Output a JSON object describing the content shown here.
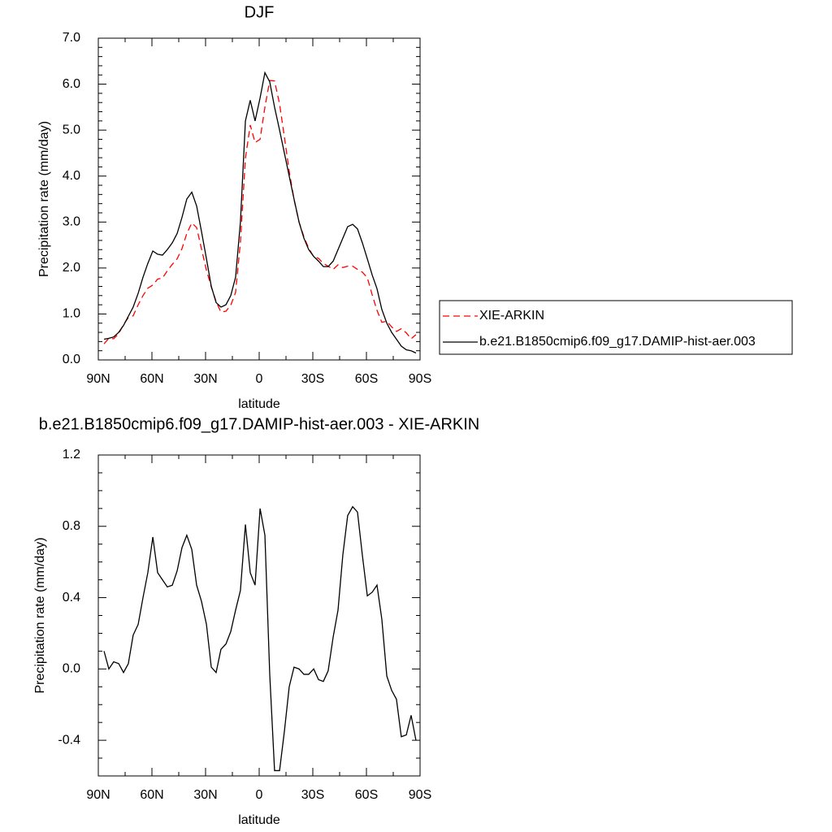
{
  "chart_data": [
    {
      "type": "line",
      "title": "DJF",
      "xlabel": "latitude",
      "ylabel": "Precipitation rate (mm/day)",
      "x": [
        86.8,
        84.1,
        81.4,
        78.6,
        75.9,
        73.2,
        70.5,
        67.7,
        65.0,
        62.3,
        59.5,
        56.8,
        54.1,
        51.4,
        48.6,
        45.9,
        43.2,
        40.5,
        37.7,
        35.0,
        32.3,
        29.5,
        26.8,
        24.1,
        21.4,
        18.6,
        15.9,
        13.2,
        10.5,
        7.7,
        5.0,
        2.3,
        -0.5,
        -3.2,
        -5.9,
        -8.6,
        -11.4,
        -14.1,
        -16.8,
        -19.5,
        -22.3,
        -25.0,
        -27.7,
        -30.5,
        -33.2,
        -35.9,
        -38.6,
        -41.4,
        -44.1,
        -46.8,
        -49.5,
        -52.3,
        -55.0,
        -57.7,
        -60.5,
        -63.2,
        -65.9,
        -68.6,
        -71.4,
        -74.1,
        -76.8,
        -79.5,
        -82.3,
        -85.0,
        -87.7
      ],
      "series": [
        {
          "name": "XIE-ARKIN",
          "color": "#ff0000",
          "dash": "8,5",
          "values": [
            0.35,
            0.47,
            0.46,
            0.57,
            0.77,
            0.92,
            0.96,
            1.2,
            1.4,
            1.56,
            1.63,
            1.76,
            1.78,
            1.94,
            2.08,
            2.2,
            2.42,
            2.75,
            2.98,
            2.88,
            2.42,
            1.95,
            1.59,
            1.27,
            1.04,
            1.06,
            1.19,
            1.47,
            2.56,
            4.39,
            5.11,
            4.73,
            4.8,
            5.5,
            6.08,
            6.07,
            5.57,
            4.85,
            4.1,
            3.49,
            3.0,
            2.68,
            2.43,
            2.25,
            2.21,
            2.1,
            2.04,
            1.97,
            2.07,
            2.01,
            2.04,
            2.04,
            1.97,
            1.91,
            1.79,
            1.42,
            1.08,
            0.82,
            0.84,
            0.72,
            0.62,
            0.68,
            0.59,
            0.46,
            0.55
          ]
        },
        {
          "name": "b.e21.B1850cmip6.f09_g17.DAMIP-hist-aer.003",
          "color": "#000000",
          "values": [
            0.45,
            0.47,
            0.5,
            0.6,
            0.75,
            0.95,
            1.15,
            1.45,
            1.8,
            2.1,
            2.37,
            2.3,
            2.28,
            2.4,
            2.55,
            2.75,
            3.1,
            3.5,
            3.65,
            3.35,
            2.8,
            2.2,
            1.6,
            1.25,
            1.15,
            1.2,
            1.4,
            1.8,
            3.0,
            5.2,
            5.65,
            5.2,
            5.7,
            6.25,
            6.05,
            5.5,
            5.0,
            4.5,
            4.0,
            3.5,
            3.0,
            2.65,
            2.4,
            2.25,
            2.15,
            2.03,
            2.03,
            2.15,
            2.4,
            2.65,
            2.9,
            2.95,
            2.85,
            2.55,
            2.2,
            1.85,
            1.55,
            1.1,
            0.8,
            0.6,
            0.45,
            0.3,
            0.22,
            0.2,
            0.15
          ]
        }
      ],
      "xlim": [
        90,
        -90
      ],
      "xticks": [
        {
          "value": 90,
          "label": "90N"
        },
        {
          "value": 60,
          "label": "60N"
        },
        {
          "value": 30,
          "label": "30N"
        },
        0,
        {
          "value": -30,
          "label": "30S"
        },
        {
          "value": -60,
          "label": "60S"
        },
        {
          "value": -90,
          "label": "90S"
        }
      ],
      "xminorticks": [
        75,
        45,
        15,
        -15,
        -45,
        -75
      ],
      "ylim": [
        0,
        7
      ],
      "yticks": [
        {
          "value": 0,
          "label": "0.0"
        },
        {
          "value": 1,
          "label": "1.0"
        },
        {
          "value": 2,
          "label": "2.0"
        },
        {
          "value": 3,
          "label": "3.0"
        },
        {
          "value": 4,
          "label": "4.0"
        },
        {
          "value": 5,
          "label": "5.0"
        },
        {
          "value": 6,
          "label": "6.0"
        },
        {
          "value": 7,
          "label": "7.0"
        }
      ],
      "yminorticks": [
        0.2,
        0.4,
        0.6,
        0.8,
        1.2,
        1.4,
        1.6,
        1.8,
        2.2,
        2.4,
        2.6,
        2.8,
        3.2,
        3.4,
        3.6,
        3.8,
        4.2,
        4.4,
        4.6,
        4.8,
        5.2,
        5.4,
        5.6,
        5.8,
        6.2,
        6.4,
        6.6,
        6.8
      ],
      "legend": "right"
    },
    {
      "type": "line",
      "title": "b.e21.B1850cmip6.f09_g17.DAMIP-hist-aer.003 - XIE-ARKIN",
      "xlabel": "latitude",
      "ylabel": "Precipitation rate (mm/day)",
      "x": [
        86.8,
        84.1,
        81.4,
        78.6,
        75.9,
        73.2,
        70.5,
        67.7,
        65.0,
        62.3,
        59.5,
        56.8,
        54.1,
        51.4,
        48.6,
        45.9,
        43.2,
        40.5,
        37.7,
        35.0,
        32.3,
        29.5,
        26.8,
        24.1,
        21.4,
        18.6,
        15.9,
        13.2,
        10.5,
        7.7,
        5.0,
        2.3,
        -0.5,
        -3.2,
        -5.9,
        -8.6,
        -11.4,
        -14.1,
        -16.8,
        -19.5,
        -22.3,
        -25.0,
        -27.7,
        -30.5,
        -33.2,
        -35.9,
        -38.6,
        -41.4,
        -44.1,
        -46.8,
        -49.5,
        -52.3,
        -55.0,
        -57.7,
        -60.5,
        -63.2,
        -65.9,
        -68.6,
        -71.4,
        -74.1,
        -76.8,
        -79.5,
        -82.3,
        -85.0,
        -87.7
      ],
      "color": "#000000",
      "values": [
        0.1,
        0.0,
        0.04,
        0.03,
        -0.02,
        0.03,
        0.19,
        0.25,
        0.4,
        0.54,
        0.74,
        0.54,
        0.5,
        0.46,
        0.47,
        0.55,
        0.68,
        0.75,
        0.67,
        0.47,
        0.38,
        0.25,
        0.01,
        -0.02,
        0.11,
        0.14,
        0.21,
        0.33,
        0.44,
        0.81,
        0.54,
        0.47,
        0.9,
        0.75,
        -0.03,
        -0.57,
        -0.57,
        -0.35,
        -0.1,
        0.01,
        0.0,
        -0.03,
        -0.03,
        0.0,
        -0.06,
        -0.07,
        -0.01,
        0.18,
        0.33,
        0.64,
        0.86,
        0.91,
        0.88,
        0.64,
        0.41,
        0.43,
        0.47,
        0.28,
        -0.04,
        -0.12,
        -0.17,
        -0.38,
        -0.37,
        -0.26,
        -0.4
      ],
      "xlim": [
        90,
        -90
      ],
      "xticks": [
        {
          "value": 90,
          "label": "90N"
        },
        {
          "value": 60,
          "label": "60N"
        },
        {
          "value": 30,
          "label": "30N"
        },
        0,
        {
          "value": -30,
          "label": "30S"
        },
        {
          "value": -60,
          "label": "60S"
        },
        {
          "value": -90,
          "label": "90S"
        }
      ],
      "xminorticks": [
        75,
        45,
        15,
        -15,
        -45,
        -75
      ],
      "ylim": [
        -0.6,
        1.2
      ],
      "yticks": [
        -0.4,
        {
          "value": 0,
          "label": "0.0"
        },
        0.4,
        0.8,
        1.2
      ],
      "yminorticks": [
        -0.5,
        -0.3,
        -0.2,
        -0.1,
        0.1,
        0.2,
        0.3,
        0.5,
        0.6,
        0.7,
        0.9,
        1.0,
        1.1
      ]
    }
  ]
}
